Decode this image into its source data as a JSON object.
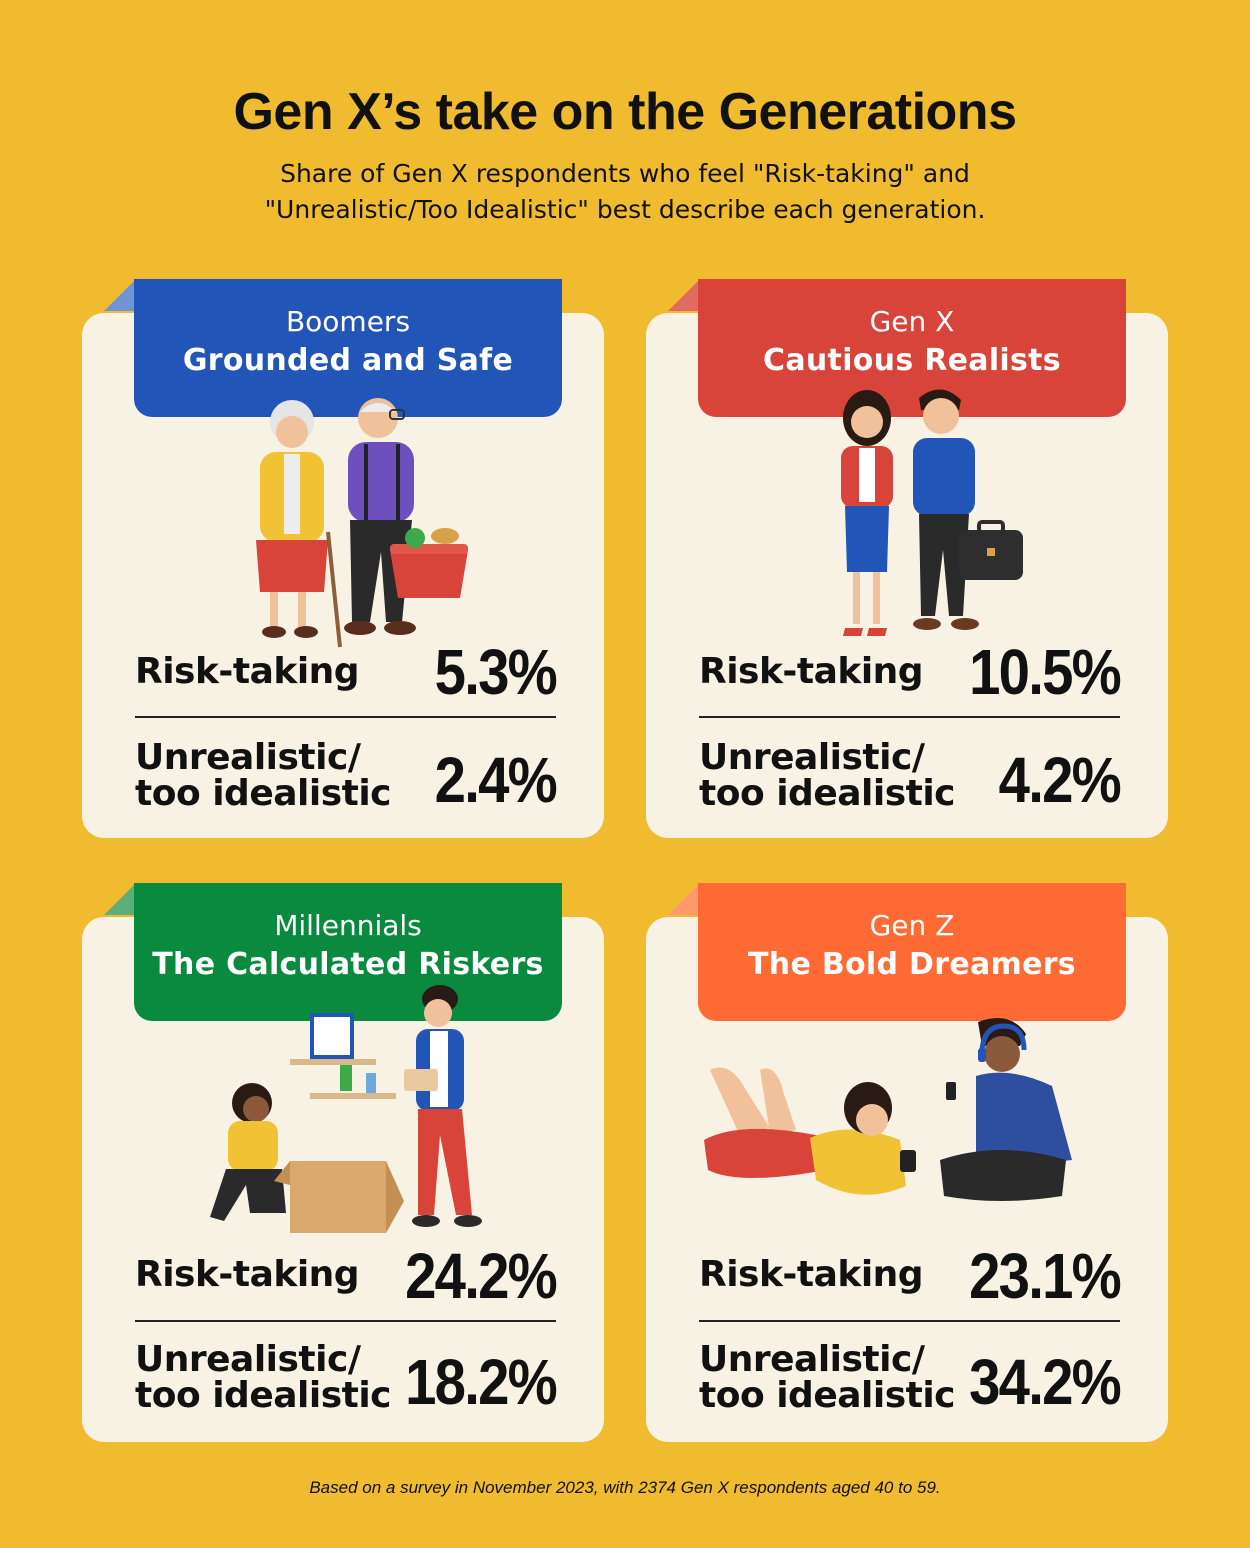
{
  "title": "Gen X’s take on the Generations",
  "subtitle_line1": "Share of Gen X respondents who feel \"Risk-taking\" and",
  "subtitle_line2": "\"Unrealistic/Too Idealistic\" best describe each generation.",
  "labels": {
    "risk": "Risk-taking",
    "unreal_line1": "Unrealistic/",
    "unreal_line2": "too idealistic"
  },
  "cards": [
    {
      "generation": "Boomers",
      "tagline": "Grounded and Safe",
      "risk_taking": "5.3%",
      "unrealistic": "2.4%",
      "color": "#2255B8",
      "fold_color": "#6F95D6"
    },
    {
      "generation": "Gen X",
      "tagline": "Cautious Realists",
      "risk_taking": "10.5%",
      "unrealistic": "4.2%",
      "color": "#D8443A",
      "fold_color": "#E06B5F"
    },
    {
      "generation": "Millennials",
      "tagline": "The Calculated Riskers",
      "risk_taking": "24.2%",
      "unrealistic": "18.2%",
      "color": "#0A8A3F",
      "fold_color": "#5BB07A"
    },
    {
      "generation": "Gen Z",
      "tagline": "The Bold Dreamers",
      "risk_taking": "23.1%",
      "unrealistic": "34.2%",
      "color": "#FF6A35",
      "fold_color": "#FF9A6E"
    }
  ],
  "footnote": "Based on a survey in November 2023, with 2374 Gen X respondents aged 40 to 59."
}
